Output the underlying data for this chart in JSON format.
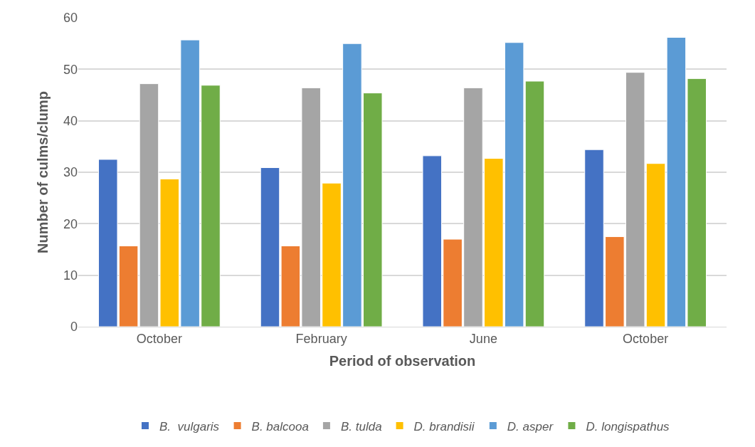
{
  "chart_data": {
    "type": "bar",
    "xlabel": "Period of observation",
    "ylabel": "Number of culms/clump",
    "categories": [
      "October",
      "February",
      "June",
      "October"
    ],
    "series": [
      {
        "name": "B.  vulgaris",
        "color": "#4472c4",
        "values": [
          32.5,
          30.9,
          33.2,
          34.4
        ]
      },
      {
        "name": "B. balcooa",
        "color": "#ed7d31",
        "values": [
          15.7,
          15.7,
          17.0,
          17.5
        ]
      },
      {
        "name": "B. tulda",
        "color": "#a5a5a5",
        "values": [
          47.2,
          46.4,
          46.4,
          49.4
        ]
      },
      {
        "name": "D. brandisii",
        "color": "#ffc000",
        "values": [
          28.7,
          27.9,
          32.7,
          31.7
        ]
      },
      {
        "name": "D. asper",
        "color": "#5b9bd5",
        "values": [
          55.7,
          55.0,
          55.2,
          56.2
        ]
      },
      {
        "name": "D. longispathus",
        "color": "#70ad47",
        "values": [
          46.9,
          45.4,
          47.7,
          48.2
        ]
      }
    ],
    "ylim": [
      0,
      60
    ],
    "yticks": [
      0,
      10,
      20,
      30,
      40,
      50,
      60
    ],
    "grid": "y",
    "legend": "bottom"
  }
}
